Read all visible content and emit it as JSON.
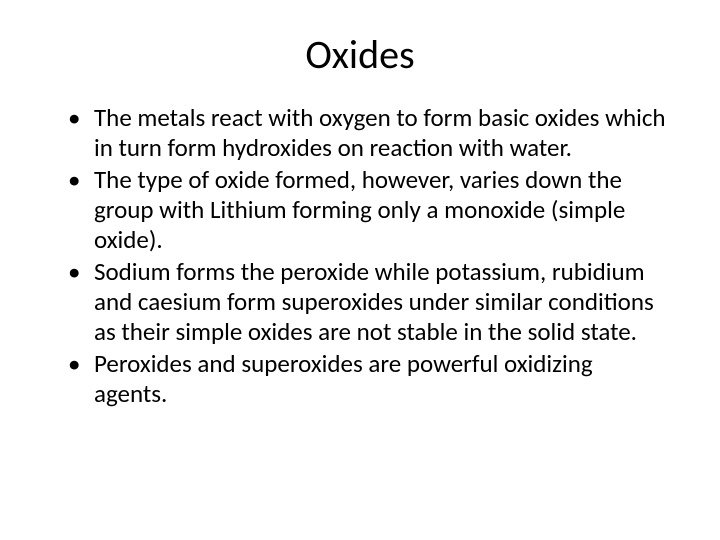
{
  "slide": {
    "title": "Oxides",
    "background_color": "#ffffff",
    "text_color": "#000000",
    "title_fontsize": 40,
    "body_fontsize": 25,
    "bullets": [
      "The metals react with oxygen to form basic oxides which in turn form hydroxides on reaction with water.",
      "The type of oxide formed, however, varies down the group with Lithium forming only a monoxide (simple oxide).",
      "Sodium forms the peroxide while potassium, rubidium and caesium form superoxides under similar conditions as their simple oxides are not stable in the solid state.",
      "Peroxides and superoxides are powerful oxidizing agents."
    ]
  }
}
